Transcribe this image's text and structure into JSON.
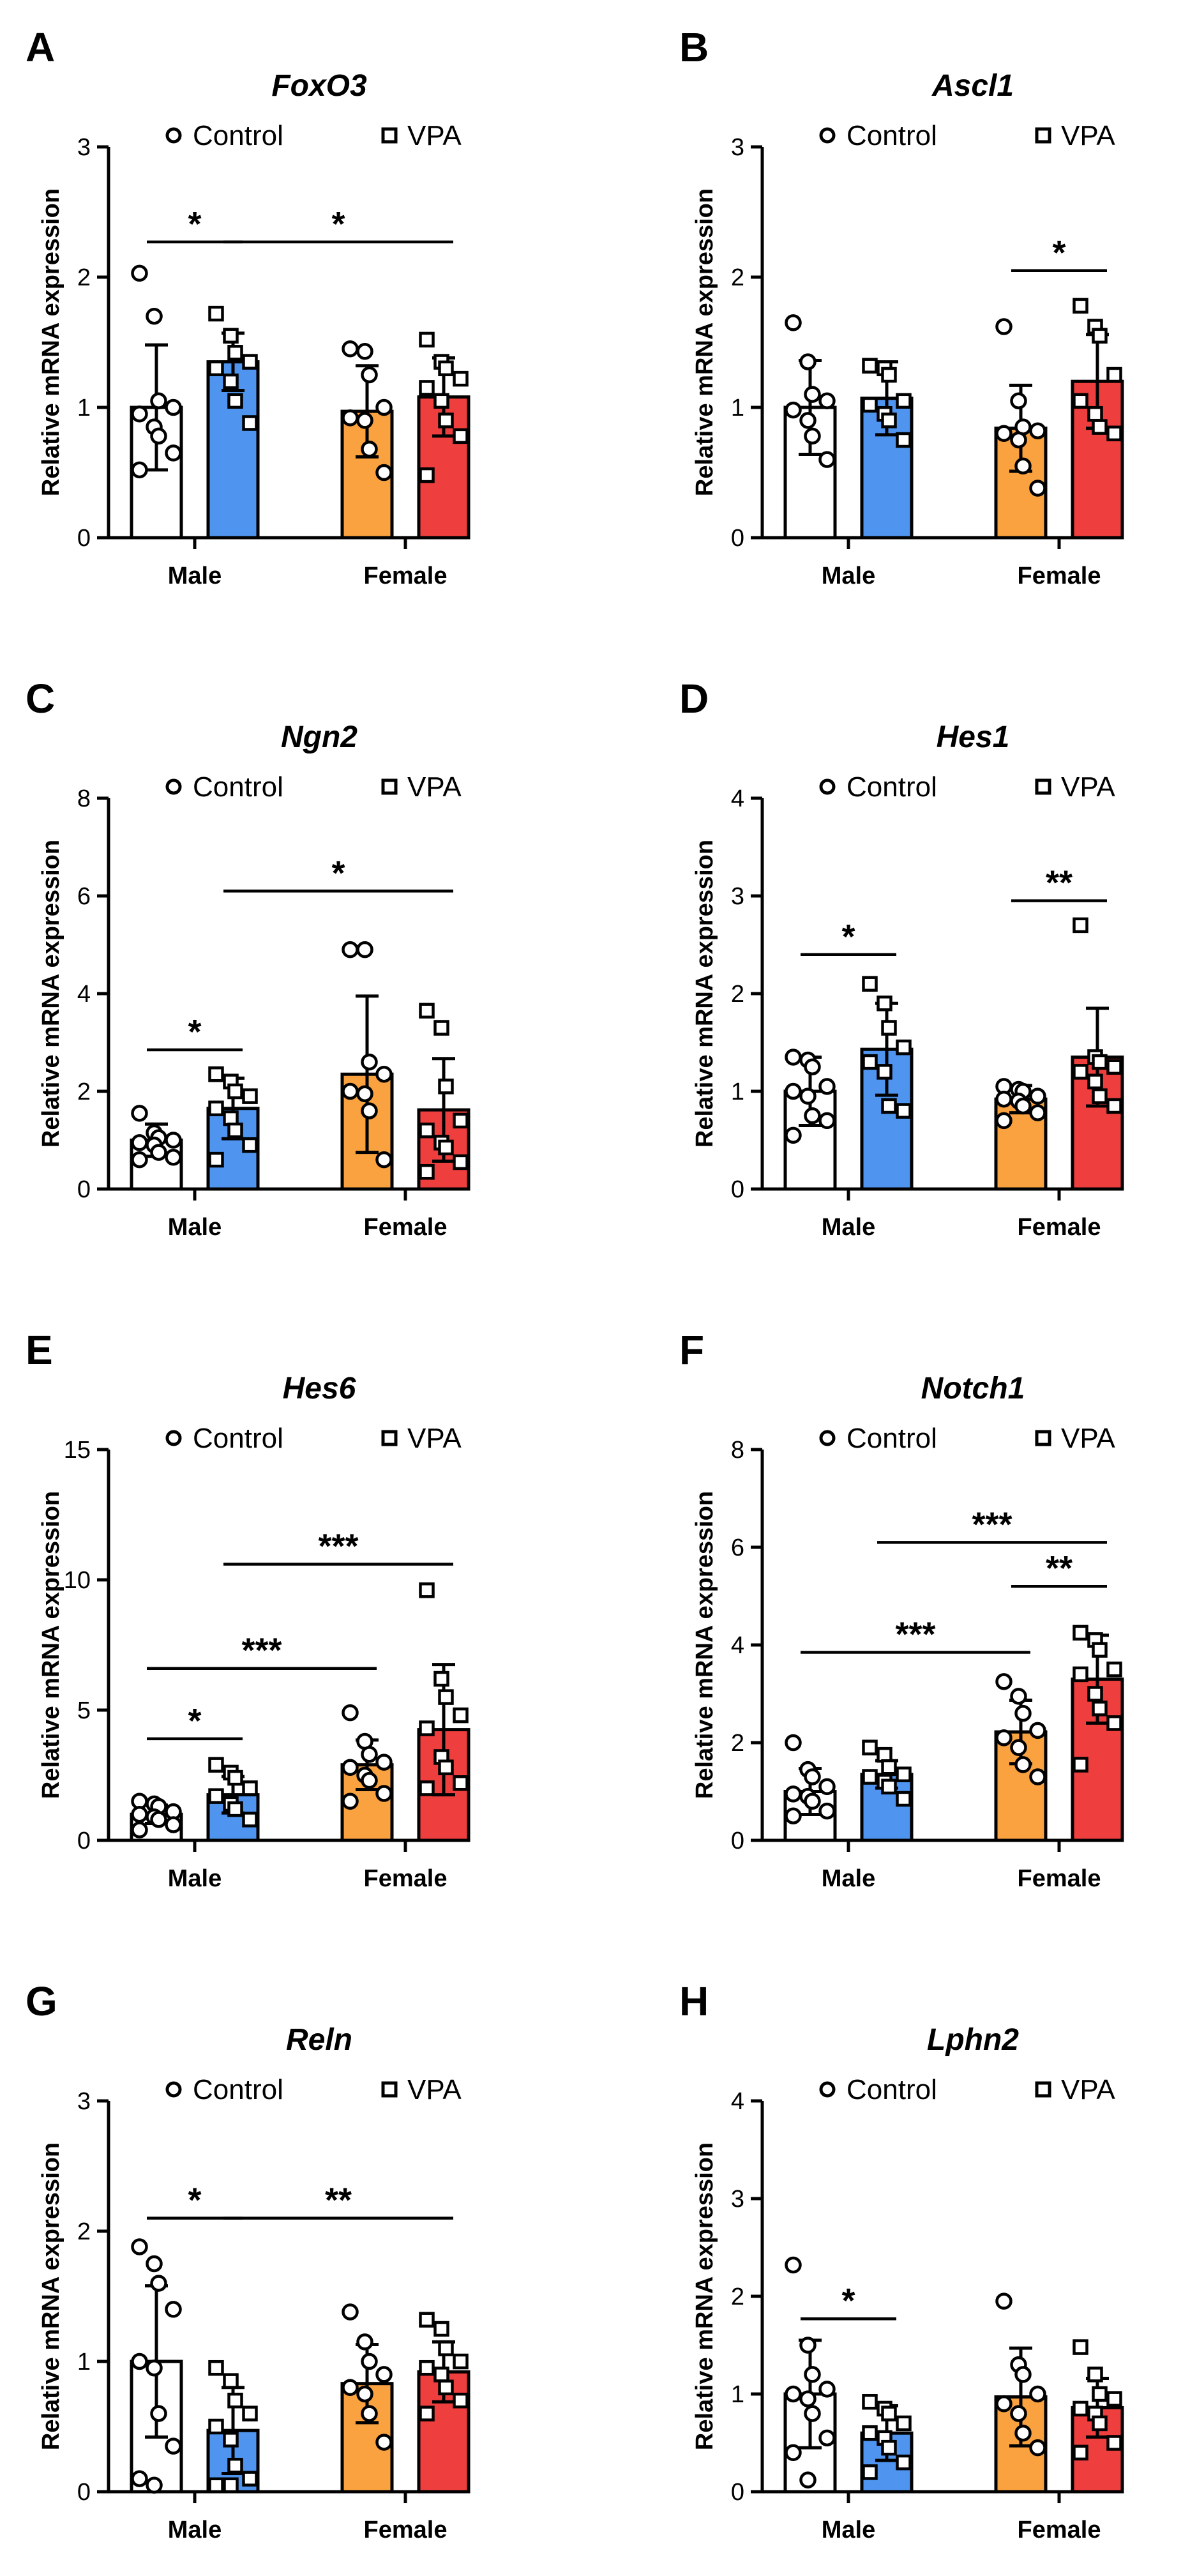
{
  "legend": {
    "control_label": "Control",
    "vpa_label": "VPA"
  },
  "y_axis_label": "Relative mRNA expression",
  "groups": [
    "Male",
    "Female"
  ],
  "colors": {
    "male_control": "#ffffff",
    "male_vpa": "#4f95f0",
    "female_control": "#f9a23f",
    "female_vpa": "#ef3e3e",
    "outline": "#000000"
  },
  "chart_data": [
    {
      "type": "bar",
      "panel": "A",
      "title": "FoxO3",
      "ylabel": "Relative mRNA expression",
      "ylim": [
        0,
        3
      ],
      "ticks": [
        0,
        1,
        2,
        3
      ],
      "tick_labels": [
        "0",
        "1",
        "2",
        "3"
      ],
      "categories": [
        "Male",
        "Female"
      ],
      "series": [
        {
          "name": "Control",
          "values": [
            1.0,
            0.97
          ]
        },
        {
          "name": "VPA",
          "values": [
            1.35,
            1.08
          ]
        }
      ],
      "bars": [
        {
          "group": "Male",
          "condition": "Control",
          "mean": 1.0,
          "err": 0.48,
          "points": [
            2.03,
            1.7,
            1.05,
            1.0,
            0.95,
            0.85,
            0.78,
            0.65,
            0.52
          ]
        },
        {
          "group": "Male",
          "condition": "VPA",
          "mean": 1.35,
          "err": 0.22,
          "points": [
            1.72,
            1.55,
            1.42,
            1.35,
            1.3,
            1.2,
            1.05,
            0.88
          ]
        },
        {
          "group": "Female",
          "condition": "Control",
          "mean": 0.97,
          "err": 0.35,
          "points": [
            1.45,
            1.43,
            1.25,
            1.0,
            0.92,
            0.9,
            0.68,
            0.5
          ]
        },
        {
          "group": "Female",
          "condition": "VPA",
          "mean": 1.08,
          "err": 0.3,
          "points": [
            1.52,
            1.35,
            1.3,
            1.22,
            1.15,
            1.05,
            0.9,
            0.78,
            0.48
          ]
        }
      ],
      "significance": [
        {
          "from": 0,
          "to": 1,
          "y": 2.27,
          "stars": "*"
        },
        {
          "from": 1,
          "to": 3,
          "y": 2.27,
          "stars": "*"
        }
      ]
    },
    {
      "type": "bar",
      "panel": "B",
      "title": "Ascl1",
      "ylabel": "Relative mRNA expression",
      "ylim": [
        0,
        3
      ],
      "ticks": [
        0,
        1,
        2,
        3
      ],
      "tick_labels": [
        "0",
        "1",
        "2",
        "3"
      ],
      "categories": [
        "Male",
        "Female"
      ],
      "series": [
        {
          "name": "Control",
          "values": [
            1.0,
            0.84
          ]
        },
        {
          "name": "VPA",
          "values": [
            1.07,
            1.2
          ]
        }
      ],
      "bars": [
        {
          "group": "Male",
          "condition": "Control",
          "mean": 1.0,
          "err": 0.36,
          "points": [
            1.65,
            1.35,
            1.1,
            1.05,
            0.98,
            0.9,
            0.78,
            0.6
          ]
        },
        {
          "group": "Male",
          "condition": "VPA",
          "mean": 1.07,
          "err": 0.28,
          "points": [
            1.32,
            1.3,
            1.25,
            1.05,
            1.02,
            0.95,
            0.9,
            0.75
          ]
        },
        {
          "group": "Female",
          "condition": "Control",
          "mean": 0.84,
          "err": 0.33,
          "points": [
            1.62,
            1.05,
            0.85,
            0.82,
            0.8,
            0.75,
            0.55,
            0.38
          ]
        },
        {
          "group": "Female",
          "condition": "VPA",
          "mean": 1.2,
          "err": 0.36,
          "points": [
            1.78,
            1.62,
            1.55,
            1.25,
            1.05,
            0.95,
            0.85,
            0.8
          ]
        }
      ],
      "significance": [
        {
          "from": 2,
          "to": 3,
          "y": 2.05,
          "stars": "*"
        }
      ]
    },
    {
      "type": "bar",
      "panel": "C",
      "title": "Ngn2",
      "ylabel": "Relative mRNA expression",
      "ylim": [
        0,
        8
      ],
      "ticks": [
        0,
        2,
        4,
        6,
        8
      ],
      "tick_labels": [
        "0",
        "2",
        "4",
        "6",
        "8"
      ],
      "categories": [
        "Male",
        "Female"
      ],
      "series": [
        {
          "name": "Control",
          "values": [
            1.0,
            2.35
          ]
        },
        {
          "name": "VPA",
          "values": [
            1.65,
            1.62
          ]
        }
      ],
      "bars": [
        {
          "group": "Male",
          "condition": "Control",
          "mean": 1.0,
          "err": 0.33,
          "points": [
            1.55,
            1.15,
            1.05,
            1.0,
            0.95,
            0.9,
            0.75,
            0.65,
            0.6
          ]
        },
        {
          "group": "Male",
          "condition": "VPA",
          "mean": 1.65,
          "err": 0.62,
          "points": [
            2.35,
            2.2,
            2.0,
            1.9,
            1.65,
            1.45,
            1.2,
            0.9,
            0.6
          ]
        },
        {
          "group": "Female",
          "condition": "Control",
          "mean": 2.35,
          "err": 1.6,
          "points": [
            4.9,
            4.9,
            2.6,
            2.35,
            2.0,
            1.95,
            1.6,
            0.6
          ]
        },
        {
          "group": "Female",
          "condition": "VPA",
          "mean": 1.62,
          "err": 1.05,
          "points": [
            3.65,
            3.3,
            2.1,
            1.4,
            1.2,
            0.95,
            0.85,
            0.55,
            0.35
          ]
        }
      ],
      "significance": [
        {
          "from": 0,
          "to": 1,
          "y": 2.85,
          "stars": "*"
        },
        {
          "from": 1,
          "to": 3,
          "y": 6.1,
          "stars": "*"
        }
      ]
    },
    {
      "type": "bar",
      "panel": "D",
      "title": "Hes1",
      "ylabel": "Relative mRNA expression",
      "ylim": [
        0,
        4
      ],
      "ticks": [
        0,
        1,
        2,
        3,
        4
      ],
      "tick_labels": [
        "0",
        "1",
        "2",
        "3",
        "4"
      ],
      "categories": [
        "Male",
        "Female"
      ],
      "series": [
        {
          "name": "Control",
          "values": [
            1.0,
            0.92
          ]
        },
        {
          "name": "VPA",
          "values": [
            1.43,
            1.35
          ]
        }
      ],
      "bars": [
        {
          "group": "Male",
          "condition": "Control",
          "mean": 1.0,
          "err": 0.35,
          "points": [
            1.35,
            1.32,
            1.25,
            1.05,
            1.0,
            0.95,
            0.75,
            0.7,
            0.55
          ]
        },
        {
          "group": "Male",
          "condition": "VPA",
          "mean": 1.43,
          "err": 0.47,
          "points": [
            2.1,
            1.9,
            1.65,
            1.45,
            1.3,
            1.2,
            0.85,
            0.8
          ]
        },
        {
          "group": "Female",
          "condition": "Control",
          "mean": 0.92,
          "err": 0.14,
          "points": [
            1.05,
            1.02,
            1.0,
            0.95,
            0.92,
            0.9,
            0.85,
            0.78,
            0.7
          ]
        },
        {
          "group": "Female",
          "condition": "VPA",
          "mean": 1.35,
          "err": 0.5,
          "points": [
            2.7,
            1.35,
            1.3,
            1.25,
            1.2,
            1.1,
            0.95,
            0.85
          ]
        }
      ],
      "significance": [
        {
          "from": 0,
          "to": 1,
          "y": 2.4,
          "stars": "*"
        },
        {
          "from": 2,
          "to": 3,
          "y": 2.95,
          "stars": "**"
        }
      ]
    },
    {
      "type": "bar",
      "panel": "E",
      "title": "Hes6",
      "ylabel": "Relative mRNA expression",
      "ylim": [
        0,
        15
      ],
      "ticks": [
        0,
        5,
        10,
        15
      ],
      "tick_labels": [
        "0",
        "5",
        "10",
        "15"
      ],
      "categories": [
        "Male",
        "Female"
      ],
      "series": [
        {
          "name": "Control",
          "values": [
            1.0,
            2.9
          ]
        },
        {
          "name": "VPA",
          "values": [
            1.75,
            4.25
          ]
        }
      ],
      "bars": [
        {
          "group": "Male",
          "condition": "Control",
          "mean": 1.0,
          "err": 0.35,
          "points": [
            1.5,
            1.4,
            1.3,
            1.1,
            1.0,
            0.9,
            0.8,
            0.6,
            0.4
          ]
        },
        {
          "group": "Male",
          "condition": "VPA",
          "mean": 1.75,
          "err": 0.7,
          "points": [
            2.9,
            2.6,
            2.4,
            2.0,
            1.7,
            1.4,
            1.2,
            0.8
          ]
        },
        {
          "group": "Female",
          "condition": "Control",
          "mean": 2.9,
          "err": 0.95,
          "points": [
            4.9,
            3.8,
            3.3,
            3.0,
            2.8,
            2.5,
            2.3,
            1.8,
            1.5
          ]
        },
        {
          "group": "Female",
          "condition": "VPA",
          "mean": 4.25,
          "err": 2.5,
          "points": [
            9.6,
            6.2,
            5.5,
            4.8,
            4.3,
            3.2,
            2.8,
            2.2,
            2.0
          ]
        }
      ],
      "significance": [
        {
          "from": 0,
          "to": 1,
          "y": 3.9,
          "stars": "*"
        },
        {
          "from": 0,
          "to": 2,
          "y": 6.6,
          "stars": "***"
        },
        {
          "from": 1,
          "to": 3,
          "y": 10.6,
          "stars": "***"
        }
      ]
    },
    {
      "type": "bar",
      "panel": "F",
      "title": "Notch1",
      "ylabel": "Relative mRNA expression",
      "ylim": [
        0,
        8
      ],
      "ticks": [
        0,
        2,
        4,
        6,
        8
      ],
      "tick_labels": [
        "0",
        "2",
        "4",
        "6",
        "8"
      ],
      "categories": [
        "Male",
        "Female"
      ],
      "series": [
        {
          "name": "Control",
          "values": [
            1.0,
            2.22
          ]
        },
        {
          "name": "VPA",
          "values": [
            1.35,
            3.3
          ]
        }
      ],
      "bars": [
        {
          "group": "Male",
          "condition": "Control",
          "mean": 1.0,
          "err": 0.47,
          "points": [
            2.0,
            1.45,
            1.3,
            1.1,
            0.95,
            0.9,
            0.8,
            0.6,
            0.5
          ]
        },
        {
          "group": "Male",
          "condition": "VPA",
          "mean": 1.35,
          "err": 0.28,
          "points": [
            1.9,
            1.75,
            1.5,
            1.35,
            1.3,
            1.2,
            1.1,
            0.85
          ]
        },
        {
          "group": "Female",
          "condition": "Control",
          "mean": 2.22,
          "err": 0.65,
          "points": [
            3.25,
            2.95,
            2.6,
            2.25,
            2.1,
            1.9,
            1.55,
            1.3
          ]
        },
        {
          "group": "Female",
          "condition": "VPA",
          "mean": 3.3,
          "err": 0.9,
          "points": [
            4.25,
            4.1,
            3.9,
            3.5,
            3.4,
            3.0,
            2.7,
            2.4,
            1.55
          ]
        }
      ],
      "significance": [
        {
          "from": 0,
          "to": 2,
          "y": 3.85,
          "stars": "***"
        },
        {
          "from": 2,
          "to": 3,
          "y": 5.2,
          "stars": "**"
        },
        {
          "from": 1,
          "to": 3,
          "y": 6.1,
          "stars": "***"
        }
      ]
    },
    {
      "type": "bar",
      "panel": "G",
      "title": "Reln",
      "ylabel": "Relative mRNA expression",
      "ylim": [
        0,
        3
      ],
      "ticks": [
        0,
        1,
        2,
        3
      ],
      "tick_labels": [
        "0",
        "1",
        "2",
        "3"
      ],
      "categories": [
        "Male",
        "Female"
      ],
      "series": [
        {
          "name": "Control",
          "values": [
            1.0,
            0.83
          ]
        },
        {
          "name": "VPA",
          "values": [
            0.47,
            0.92
          ]
        }
      ],
      "bars": [
        {
          "group": "Male",
          "condition": "Control",
          "mean": 1.0,
          "err": 0.58,
          "points": [
            1.88,
            1.75,
            1.6,
            1.4,
            1.0,
            0.95,
            0.6,
            0.35,
            0.1,
            0.05
          ]
        },
        {
          "group": "Male",
          "condition": "VPA",
          "mean": 0.47,
          "err": 0.33,
          "points": [
            0.95,
            0.85,
            0.7,
            0.6,
            0.5,
            0.4,
            0.2,
            0.1,
            0.05,
            0.05
          ]
        },
        {
          "group": "Female",
          "condition": "Control",
          "mean": 0.83,
          "err": 0.3,
          "points": [
            1.38,
            1.15,
            1.0,
            0.9,
            0.8,
            0.75,
            0.6,
            0.38
          ]
        },
        {
          "group": "Female",
          "condition": "VPA",
          "mean": 0.92,
          "err": 0.23,
          "points": [
            1.32,
            1.25,
            1.1,
            1.0,
            0.95,
            0.9,
            0.8,
            0.7,
            0.6
          ]
        }
      ],
      "significance": [
        {
          "from": 0,
          "to": 1,
          "y": 2.1,
          "stars": "*"
        },
        {
          "from": 1,
          "to": 3,
          "y": 2.1,
          "stars": "**"
        }
      ]
    },
    {
      "type": "bar",
      "panel": "H",
      "title": "Lphn2",
      "ylabel": "Relative mRNA expression",
      "ylim": [
        0,
        4
      ],
      "ticks": [
        0,
        1,
        2,
        3,
        4
      ],
      "tick_labels": [
        "0",
        "1",
        "2",
        "3",
        "4"
      ],
      "categories": [
        "Male",
        "Female"
      ],
      "series": [
        {
          "name": "Control",
          "values": [
            1.0,
            0.97
          ]
        },
        {
          "name": "VPA",
          "values": [
            0.6,
            0.86
          ]
        }
      ],
      "bars": [
        {
          "group": "Male",
          "condition": "Control",
          "mean": 1.0,
          "err": 0.55,
          "points": [
            2.32,
            1.5,
            1.2,
            1.05,
            1.0,
            0.95,
            0.8,
            0.55,
            0.4,
            0.12
          ]
        },
        {
          "group": "Male",
          "condition": "VPA",
          "mean": 0.6,
          "err": 0.28,
          "points": [
            0.92,
            0.85,
            0.8,
            0.7,
            0.6,
            0.55,
            0.45,
            0.3,
            0.2
          ]
        },
        {
          "group": "Female",
          "condition": "Control",
          "mean": 0.97,
          "err": 0.5,
          "points": [
            1.95,
            1.3,
            1.2,
            1.0,
            0.9,
            0.8,
            0.6,
            0.45
          ]
        },
        {
          "group": "Female",
          "condition": "VPA",
          "mean": 0.86,
          "err": 0.3,
          "points": [
            1.48,
            1.2,
            1.0,
            0.95,
            0.85,
            0.8,
            0.7,
            0.5,
            0.4
          ]
        }
      ],
      "significance": [
        {
          "from": 0,
          "to": 1,
          "y": 1.77,
          "stars": "*"
        }
      ]
    }
  ]
}
